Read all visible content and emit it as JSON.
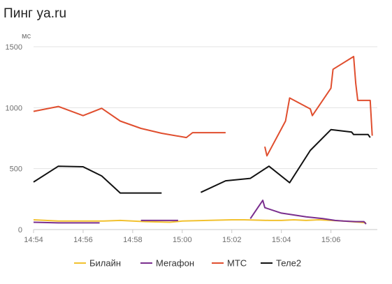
{
  "chart_data": {
    "type": "line",
    "title": "Пинг ya.ru",
    "ylabel": "мс",
    "ylim": [
      0,
      1500
    ],
    "y_ticks": [
      0,
      500,
      1000,
      1500
    ],
    "xlim": [
      "14:54",
      "15:07:40"
    ],
    "x_ticks": [
      "14:54",
      "14:56",
      "14:58",
      "15:00",
      "15:02",
      "15:04",
      "15:06"
    ],
    "grid": "horizontal",
    "legend_position": "bottom",
    "series": [
      {
        "name": "Билайн",
        "color": "#f2c12e",
        "segments": [
          [
            [
              "14:54:00",
              80
            ],
            [
              "14:55:00",
              70
            ],
            [
              "14:56:00",
              70
            ],
            [
              "14:56:50",
              70
            ],
            [
              "14:57:30",
              75
            ],
            [
              "14:58:30",
              65
            ],
            [
              "14:59:30",
              60
            ],
            [
              "15:00:00",
              70
            ],
            [
              "15:01:00",
              75
            ],
            [
              "15:02:00",
              80
            ],
            [
              "15:02:30",
              80
            ],
            [
              "15:03:30",
              75
            ],
            [
              "15:04:00",
              75
            ],
            [
              "15:04:30",
              80
            ],
            [
              "15:05:00",
              75
            ],
            [
              "15:05:30",
              80
            ],
            [
              "15:06:00",
              75
            ],
            [
              "15:06:30",
              70
            ],
            [
              "15:07:10",
              60
            ],
            [
              "15:07:25",
              55
            ]
          ]
        ]
      },
      {
        "name": "Мегафон",
        "color": "#7a2e8e",
        "segments": [
          [
            [
              "14:54:00",
              60
            ],
            [
              "14:55:00",
              55
            ],
            [
              "14:56:00",
              55
            ],
            [
              "14:56:40",
              55
            ]
          ],
          [
            [
              "14:58:20",
              75
            ],
            [
              "14:59:00",
              75
            ],
            [
              "14:59:50",
              75
            ]
          ],
          [
            [
              "15:02:45",
              90
            ],
            [
              "15:03:15",
              240
            ],
            [
              "15:03:20",
              180
            ],
            [
              "15:04:00",
              135
            ],
            [
              "15:05:00",
              105
            ],
            [
              "15:05:40",
              90
            ],
            [
              "15:06:10",
              75
            ],
            [
              "15:06:30",
              70
            ],
            [
              "15:07:00",
              65
            ],
            [
              "15:07:20",
              65
            ],
            [
              "15:07:25",
              45
            ]
          ]
        ]
      },
      {
        "name": "МТС",
        "color": "#e04e2e",
        "segments": [
          [
            [
              "14:54:00",
              970
            ],
            [
              "14:55:00",
              1010
            ],
            [
              "14:56:00",
              935
            ],
            [
              "14:56:45",
              995
            ],
            [
              "14:57:30",
              890
            ],
            [
              "14:58:20",
              830
            ],
            [
              "14:59:10",
              790
            ],
            [
              "15:00:10",
              755
            ],
            [
              "15:00:25",
              795
            ],
            [
              "15:01:45",
              795
            ]
          ],
          [
            [
              "15:03:20",
              680
            ],
            [
              "15:03:25",
              605
            ],
            [
              "15:04:10",
              890
            ],
            [
              "15:04:20",
              1080
            ],
            [
              "15:05:10",
              990
            ],
            [
              "15:05:15",
              935
            ],
            [
              "15:06:00",
              1160
            ],
            [
              "15:06:05",
              1315
            ],
            [
              "15:06:55",
              1420
            ],
            [
              "15:07:00",
              1200
            ],
            [
              "15:07:05",
              1060
            ],
            [
              "15:07:35",
              1060
            ],
            [
              "15:07:40",
              770
            ]
          ]
        ]
      },
      {
        "name": "Теле2",
        "color": "#111111",
        "segments": [
          [
            [
              "14:54:00",
              390
            ],
            [
              "14:55:00",
              520
            ],
            [
              "14:56:00",
              515
            ],
            [
              "14:56:45",
              440
            ],
            [
              "14:57:30",
              300
            ],
            [
              "14:58:30",
              300
            ],
            [
              "14:59:10",
              300
            ]
          ],
          [
            [
              "15:00:45",
              305
            ],
            [
              "15:01:45",
              400
            ],
            [
              "15:02:45",
              420
            ],
            [
              "15:03:30",
              520
            ],
            [
              "15:04:20",
              385
            ],
            [
              "15:05:10",
              650
            ],
            [
              "15:06:00",
              820
            ],
            [
              "15:06:50",
              800
            ],
            [
              "15:06:55",
              780
            ],
            [
              "15:07:30",
              780
            ],
            [
              "15:07:35",
              755
            ]
          ]
        ]
      }
    ]
  }
}
